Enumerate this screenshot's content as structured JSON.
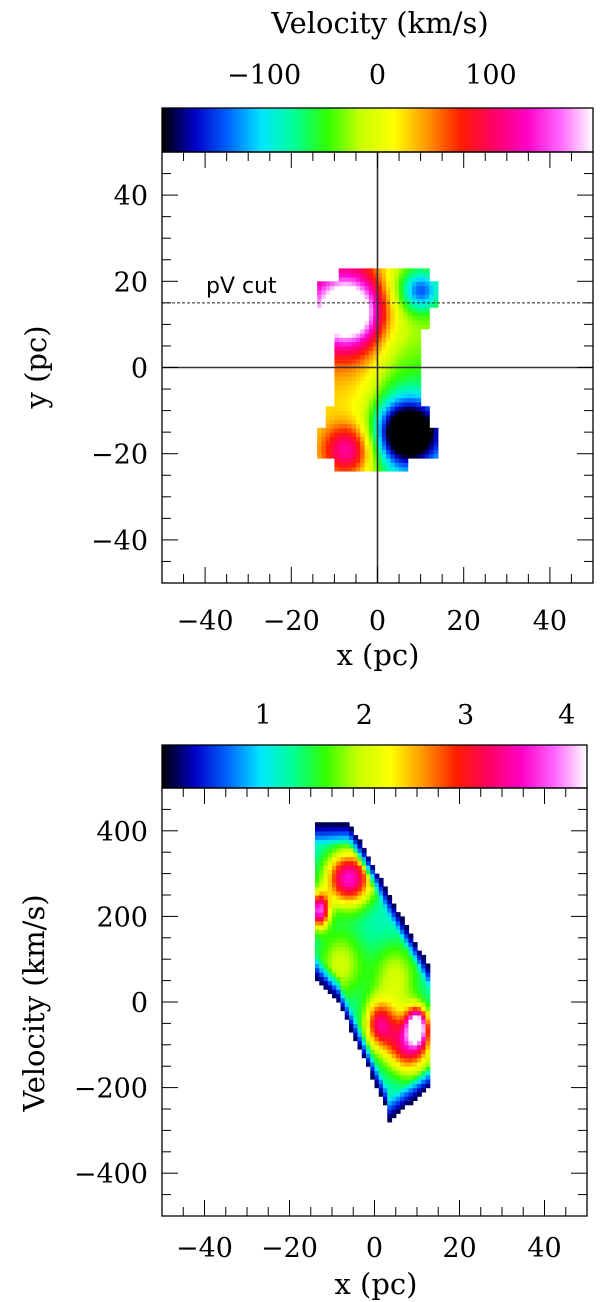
{
  "colormap": {
    "stops": [
      "#000000",
      "#0000c8",
      "#0064ff",
      "#00e6ff",
      "#00ff96",
      "#32ff00",
      "#c8ff00",
      "#ffff00",
      "#ff9600",
      "#ff1e00",
      "#ff0064",
      "#ff00c8",
      "#ff64ff",
      "#ffffff"
    ]
  },
  "charts": [
    {
      "type": "heatmap",
      "id": "velocity_map",
      "colorbar": {
        "label": "Velocity (km/s)",
        "range": [
          -190,
          190
        ],
        "ticks": [
          -100,
          0,
          100
        ],
        "tick_labels": [
          "−100",
          "0",
          "100"
        ]
      },
      "xlabel": "x (pc)",
      "ylabel": "y (pc)",
      "xlim": [
        -50,
        50
      ],
      "ylim": [
        -50,
        50
      ],
      "xticks": [
        -40,
        -20,
        0,
        20,
        40
      ],
      "xtick_labels": [
        "−40",
        "−20",
        "0",
        "20",
        "40"
      ],
      "yticks": [
        -40,
        -20,
        0,
        20,
        40
      ],
      "ytick_labels": [
        "−40",
        "−20",
        "0",
        "20",
        "40"
      ],
      "minor_step": 5,
      "reference_lines": [
        {
          "orientation": "vertical",
          "value": 0,
          "style": "solid"
        },
        {
          "orientation": "horizontal",
          "value": 0,
          "style": "solid"
        },
        {
          "orientation": "horizontal",
          "value": 15,
          "style": "dashed",
          "label": "pV cut"
        }
      ],
      "data_extent": {
        "x": [
          -15,
          14
        ],
        "y": [
          -24,
          23
        ]
      },
      "features": [
        {
          "x": -7,
          "y": 14,
          "value": 190
        },
        {
          "x": -7,
          "y": -19,
          "value": 95
        },
        {
          "x": 7,
          "y": -16,
          "value": -190
        },
        {
          "x": 10,
          "y": 18,
          "value": -110
        },
        {
          "x": -8,
          "y": 2,
          "value": 50
        },
        {
          "x": 6,
          "y": 5,
          "value": -20
        }
      ]
    },
    {
      "type": "heatmap",
      "id": "pv_diagram",
      "colorbar": {
        "label": "",
        "range": [
          0,
          4.2
        ],
        "ticks": [
          1,
          2,
          3,
          4
        ],
        "tick_labels": [
          "1",
          "2",
          "3",
          "4"
        ]
      },
      "xlabel": "x (pc)",
      "ylabel": "Velocity (km/s)",
      "xlim": [
        -50,
        50
      ],
      "ylim": [
        -500,
        500
      ],
      "xticks": [
        -40,
        -20,
        0,
        20,
        40
      ],
      "xtick_labels": [
        "−40",
        "−20",
        "0",
        "20",
        "40"
      ],
      "yticks": [
        -400,
        -200,
        0,
        200,
        400
      ],
      "ytick_labels": [
        "−400",
        "−200",
        "0",
        "200",
        "400"
      ],
      "minor_step_x": 5,
      "minor_step_y": 50,
      "data_extent": {
        "x": [
          -14,
          13
        ],
        "v": [
          -280,
          420
        ]
      },
      "features": [
        {
          "x": -6,
          "v": 290,
          "value": 3.3
        },
        {
          "x": -13,
          "v": 220,
          "value": 3.9
        },
        {
          "x": -6,
          "v": 150,
          "value": 1.5
        },
        {
          "x": 7,
          "v": -100,
          "value": 3.1
        },
        {
          "x": 10,
          "v": -60,
          "value": 4.0
        },
        {
          "x": 2,
          "v": -50,
          "value": 2.8
        }
      ]
    }
  ]
}
